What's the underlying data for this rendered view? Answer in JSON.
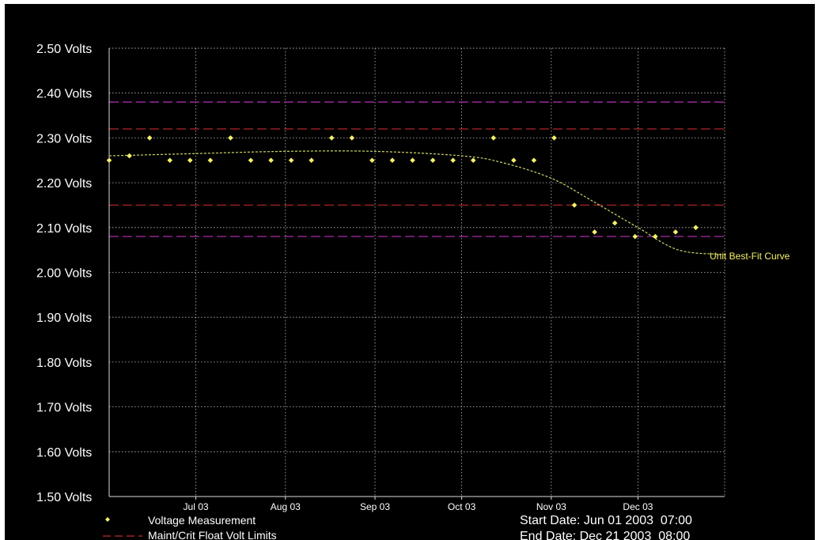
{
  "chart_data": {
    "type": "scatter",
    "y_ticks": [
      "2.50 Volts",
      "2.40 Volts",
      "2.30 Volts",
      "2.20 Volts",
      "2.10 Volts",
      "2.00 Volts",
      "1.90 Volts",
      "1.80 Volts",
      "1.70 Volts",
      "1.60 Volts",
      "1.50 Volts"
    ],
    "x_ticks": [
      "Jul 03",
      "Aug 03",
      "Sep 03",
      "Oct 03",
      "Nov 03",
      "Dec 03"
    ],
    "x_tick_dates": [
      "2003-07-01",
      "2003-08-01",
      "2003-09-01",
      "2003-10-01",
      "2003-11-01",
      "2003-12-01"
    ],
    "x_range": [
      "2003-06-01",
      "2003-12-31"
    ],
    "ylim": [
      1.5,
      2.5
    ],
    "grid": true,
    "series": [
      {
        "name": "Voltage Measurement",
        "color": "#f5f06a",
        "marker": "diamond",
        "points": [
          {
            "x": "2003-06-01",
            "y": 2.25
          },
          {
            "x": "2003-06-08",
            "y": 2.26
          },
          {
            "x": "2003-06-15",
            "y": 2.3
          },
          {
            "x": "2003-06-22",
            "y": 2.25
          },
          {
            "x": "2003-06-29",
            "y": 2.25
          },
          {
            "x": "2003-07-06",
            "y": 2.25
          },
          {
            "x": "2003-07-13",
            "y": 2.3
          },
          {
            "x": "2003-07-20",
            "y": 2.25
          },
          {
            "x": "2003-07-27",
            "y": 2.25
          },
          {
            "x": "2003-08-03",
            "y": 2.25
          },
          {
            "x": "2003-08-10",
            "y": 2.25
          },
          {
            "x": "2003-08-17",
            "y": 2.3
          },
          {
            "x": "2003-08-24",
            "y": 2.3
          },
          {
            "x": "2003-08-31",
            "y": 2.25
          },
          {
            "x": "2003-09-07",
            "y": 2.25
          },
          {
            "x": "2003-09-14",
            "y": 2.25
          },
          {
            "x": "2003-09-21",
            "y": 2.25
          },
          {
            "x": "2003-09-28",
            "y": 2.25
          },
          {
            "x": "2003-10-05",
            "y": 2.25
          },
          {
            "x": "2003-10-12",
            "y": 2.3
          },
          {
            "x": "2003-10-19",
            "y": 2.25
          },
          {
            "x": "2003-10-26",
            "y": 2.25
          },
          {
            "x": "2003-11-02",
            "y": 2.3
          },
          {
            "x": "2003-11-09",
            "y": 2.15
          },
          {
            "x": "2003-11-16",
            "y": 2.09
          },
          {
            "x": "2003-11-23",
            "y": 2.11
          },
          {
            "x": "2003-11-30",
            "y": 2.08
          },
          {
            "x": "2003-12-07",
            "y": 2.08
          },
          {
            "x": "2003-12-14",
            "y": 2.09
          },
          {
            "x": "2003-12-21",
            "y": 2.1
          }
        ]
      },
      {
        "name": "Unit Best-Fit Curve",
        "color": "#cdd66a",
        "style": "dashed",
        "points": [
          {
            "x": "2003-06-01",
            "y": 2.26
          },
          {
            "x": "2003-07-01",
            "y": 2.265
          },
          {
            "x": "2003-08-01",
            "y": 2.27
          },
          {
            "x": "2003-09-01",
            "y": 2.27
          },
          {
            "x": "2003-10-01",
            "y": 2.26
          },
          {
            "x": "2003-10-15",
            "y": 2.245
          },
          {
            "x": "2003-11-01",
            "y": 2.21
          },
          {
            "x": "2003-11-15",
            "y": 2.16
          },
          {
            "x": "2003-12-01",
            "y": 2.1
          },
          {
            "x": "2003-12-15",
            "y": 2.05
          },
          {
            "x": "2003-12-31",
            "y": 2.04
          }
        ]
      }
    ],
    "limit_lines": [
      {
        "y": 2.38,
        "color": "#a52ca8"
      },
      {
        "y": 2.32,
        "color": "#a12326"
      },
      {
        "y": 2.15,
        "color": "#a12326"
      },
      {
        "y": 2.08,
        "color": "#a52ca8"
      }
    ],
    "annotations": [
      {
        "text": "Unit Best-Fit Curve",
        "color": "#f5f06a"
      }
    ],
    "legend": {
      "placement": "bottom-left",
      "items": [
        {
          "label": "Voltage Measurement",
          "marker": "diamond",
          "color": "#f5f06a"
        },
        {
          "label": "Maint/Crit Float Volt Limits",
          "marker": "dashed-line",
          "color": "#a12326"
        }
      ]
    },
    "date_info": {
      "start": "Start Date: Jun 01 2003  07:00",
      "end": "End Date: Dec 21 2003  08:00"
    }
  }
}
